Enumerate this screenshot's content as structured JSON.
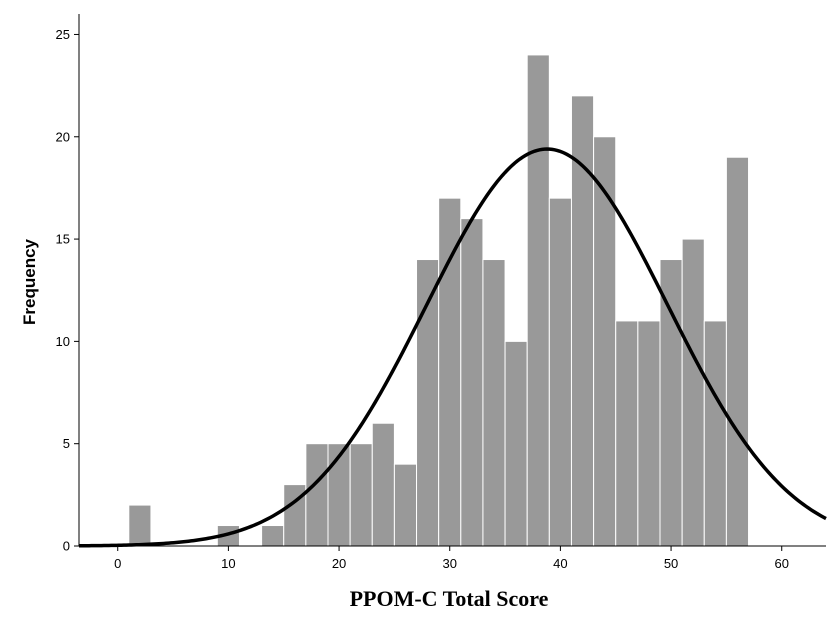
{
  "chart_data": {
    "type": "bar",
    "title": "",
    "xlabel": "PPOM-C Total Score",
    "ylabel": "Frequency",
    "xlim": [
      -3.5,
      64
    ],
    "ylim": [
      0,
      26
    ],
    "grid": false,
    "x_ticks": [
      0,
      10,
      20,
      30,
      40,
      50,
      60
    ],
    "y_ticks": [
      0,
      5,
      10,
      15,
      20,
      25
    ],
    "bin_width": 2,
    "bins": [
      {
        "x0": 1,
        "x1": 3,
        "count": 2
      },
      {
        "x0": 9,
        "x1": 11,
        "count": 1
      },
      {
        "x0": 13,
        "x1": 15,
        "count": 1
      },
      {
        "x0": 15,
        "x1": 17,
        "count": 3
      },
      {
        "x0": 17,
        "x1": 19,
        "count": 5
      },
      {
        "x0": 19,
        "x1": 21,
        "count": 5
      },
      {
        "x0": 21,
        "x1": 23,
        "count": 5
      },
      {
        "x0": 23,
        "x1": 25,
        "count": 6
      },
      {
        "x0": 25,
        "x1": 27,
        "count": 4
      },
      {
        "x0": 27,
        "x1": 29,
        "count": 14
      },
      {
        "x0": 29,
        "x1": 31,
        "count": 17
      },
      {
        "x0": 31,
        "x1": 33,
        "count": 16
      },
      {
        "x0": 33,
        "x1": 35,
        "count": 14
      },
      {
        "x0": 35,
        "x1": 37,
        "count": 10
      },
      {
        "x0": 37,
        "x1": 39,
        "count": 24
      },
      {
        "x0": 39,
        "x1": 41,
        "count": 17
      },
      {
        "x0": 41,
        "x1": 43,
        "count": 22
      },
      {
        "x0": 43,
        "x1": 45,
        "count": 20
      },
      {
        "x0": 45,
        "x1": 47,
        "count": 11
      },
      {
        "x0": 47,
        "x1": 49,
        "count": 11
      },
      {
        "x0": 49,
        "x1": 51,
        "count": 14
      },
      {
        "x0": 51,
        "x1": 53,
        "count": 15
      },
      {
        "x0": 53,
        "x1": 55,
        "count": 11
      },
      {
        "x0": 55,
        "x1": 57,
        "count": 19
      }
    ],
    "normal_curve": {
      "mean": 38.8,
      "sd": 10.9,
      "peak": 19.4
    },
    "colors": {
      "bar_fill": "#999999",
      "bar_edge": "#ffffff",
      "curve": "#000000",
      "axis": "#000000"
    }
  }
}
